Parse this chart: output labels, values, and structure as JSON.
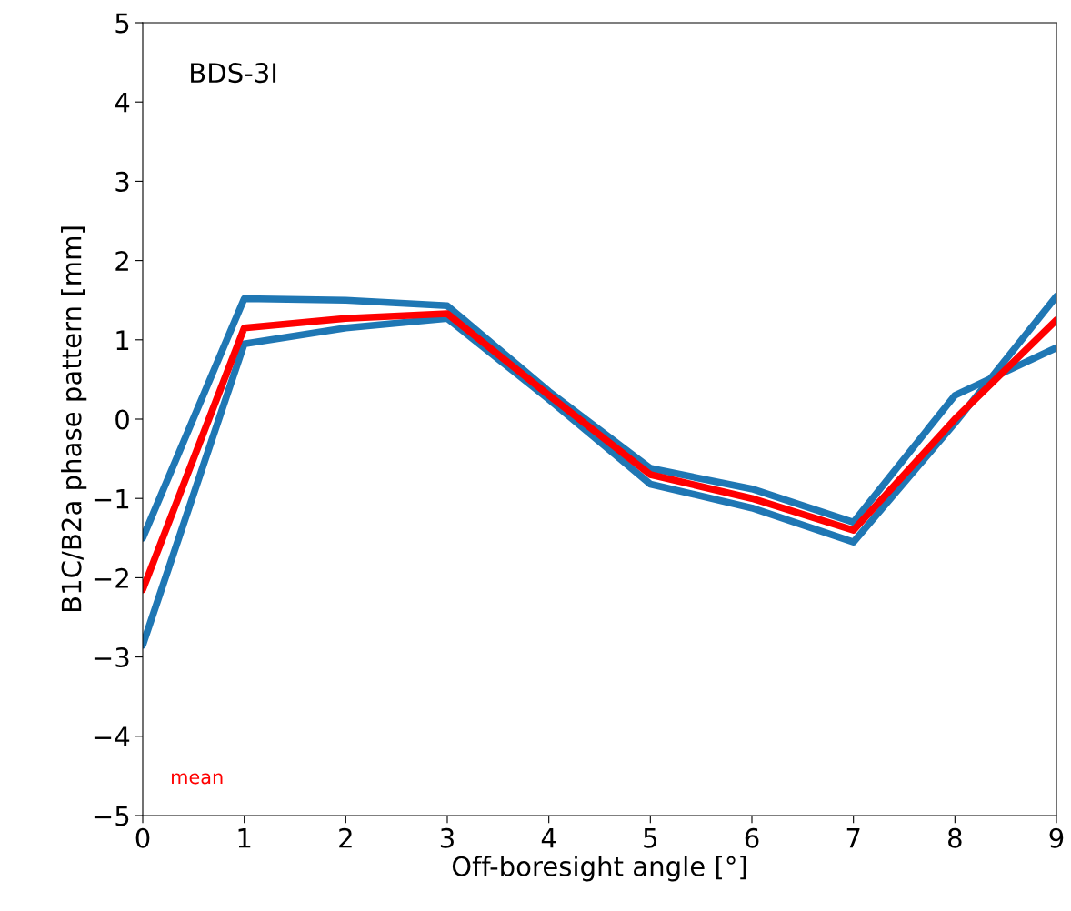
{
  "chart_data": {
    "type": "line",
    "title": "BDS-3I",
    "xlabel": "Off-boresight angle [°]",
    "ylabel": "B1C/B2a phase pattern [mm]",
    "x": [
      0,
      1,
      2,
      3,
      4,
      5,
      6,
      7,
      8,
      9
    ],
    "series": [
      {
        "color": "#1f77b4",
        "values": [
          -1.5,
          1.52,
          1.5,
          1.43,
          0.35,
          -0.62,
          -0.88,
          -1.3,
          0.3,
          0.9
        ]
      },
      {
        "color": "#1f77b4",
        "values": [
          -2.85,
          0.95,
          1.15,
          1.27,
          0.25,
          -0.82,
          -1.12,
          -1.55,
          -0.05,
          1.55
        ]
      },
      {
        "name": "mean",
        "color": "#ff0000",
        "values": [
          -2.15,
          1.15,
          1.27,
          1.33,
          0.3,
          -0.7,
          -1.0,
          -1.4,
          0.0,
          1.25
        ]
      }
    ],
    "xlim": [
      0,
      9
    ],
    "ylim": [
      -5,
      5
    ],
    "xticks": [
      0,
      1,
      2,
      3,
      4,
      5,
      6,
      7,
      8,
      9
    ],
    "yticks": [
      {
        "value": -5,
        "label": "−5"
      },
      {
        "value": -4,
        "label": "−4"
      },
      {
        "value": -3,
        "label": "−3"
      },
      {
        "value": -2,
        "label": "−2"
      },
      {
        "value": -1,
        "label": "−1"
      },
      0,
      1,
      2,
      3,
      4,
      5
    ],
    "grid": false,
    "legend": false,
    "marker": "none",
    "line_style": "solid"
  }
}
